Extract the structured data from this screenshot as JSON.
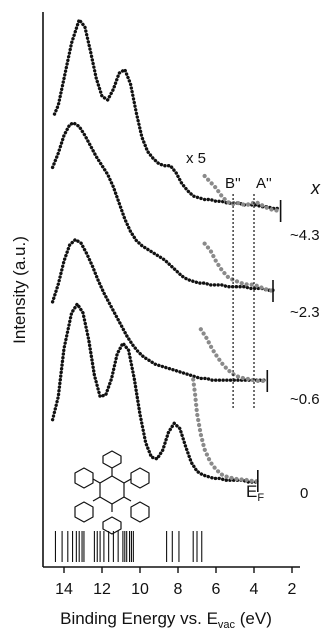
{
  "chart_data": {
    "type": "line",
    "title": "",
    "xlabel": "Binding Energy vs. E",
    "xlabel_sub": "vac",
    "xlabel_unit": " (eV)",
    "ylabel": "Intensity (a.u.)",
    "xlim": [
      15,
      2
    ],
    "x_reversed": true,
    "xticks": [
      14,
      12,
      10,
      8,
      6,
      4,
      2
    ],
    "x_header": "x",
    "magnification_label": "x 5",
    "peak_labels": [
      "B''",
      "A''"
    ],
    "peak_positions": [
      5.1,
      4.0
    ],
    "fermi_label": "E",
    "fermi_sub": "F",
    "stick_spectrum": [
      14.45,
      14.1,
      13.8,
      13.55,
      13.35,
      13.2,
      13.05,
      12.95,
      12.4,
      12.25,
      12.1,
      11.9,
      11.65,
      11.4,
      11.15,
      10.9,
      10.8,
      10.7,
      10.55,
      10.45,
      10.35,
      8.6,
      8.3,
      7.95,
      7.2,
      7.0,
      6.75
    ],
    "series": [
      {
        "name": "~4.3",
        "cutoff": 2.6,
        "x": [
          14.5,
          14.3,
          14.0,
          13.6,
          13.2,
          12.9,
          12.6,
          12.3,
          12.0,
          11.7,
          11.4,
          11.1,
          10.8,
          10.5,
          10.2,
          9.9,
          9.6,
          9.3,
          9.0,
          8.7,
          8.4,
          8.1,
          7.8,
          7.5,
          7.2,
          6.9,
          6.6,
          6.3,
          6.0,
          5.7,
          5.4,
          5.1,
          4.8,
          4.5,
          4.2,
          3.9,
          3.6,
          3.3,
          3.0,
          2.6
        ],
        "y": [
          55,
          60,
          75,
          95,
          108,
          104,
          90,
          75,
          65,
          63,
          69,
          78,
          80,
          72,
          56,
          42,
          34,
          30,
          27,
          26,
          26,
          22,
          16,
          12,
          9,
          8,
          7,
          7,
          6,
          6,
          5,
          5,
          5,
          4,
          4,
          4,
          3,
          3,
          2,
          2
        ]
      },
      {
        "name": "~2.3",
        "cutoff": 3.0,
        "x": [
          14.6,
          14.3,
          14.0,
          13.7,
          13.5,
          13.2,
          12.9,
          12.6,
          12.3,
          12.0,
          11.7,
          11.4,
          11.1,
          10.8,
          10.5,
          10.2,
          9.9,
          9.6,
          9.3,
          9.0,
          8.7,
          8.4,
          8.1,
          7.8,
          7.5,
          7.2,
          6.9,
          6.6,
          6.3,
          6.0,
          5.7,
          5.4,
          5.1,
          4.8,
          4.5,
          4.2,
          3.9,
          3.6,
          3.3,
          3.0
        ],
        "y": [
          70,
          78,
          88,
          94,
          95,
          93,
          88,
          82,
          76,
          71,
          66,
          59,
          50,
          41,
          34,
          29,
          26,
          24,
          22,
          20,
          18,
          15,
          12,
          9,
          7,
          6,
          5,
          5,
          4,
          4,
          4,
          3,
          3,
          3,
          3,
          2,
          2,
          2,
          1,
          1
        ]
      },
      {
        "name": "~0.6",
        "cutoff": 3.3,
        "x": [
          14.6,
          14.3,
          14.0,
          13.7,
          13.4,
          13.1,
          12.8,
          12.5,
          12.2,
          11.9,
          11.6,
          11.3,
          11.0,
          10.7,
          10.4,
          10.1,
          9.8,
          9.5,
          9.2,
          8.9,
          8.6,
          8.3,
          8.0,
          7.7,
          7.4,
          7.1,
          6.8,
          6.5,
          6.2,
          5.9,
          5.6,
          5.3,
          5.0,
          4.7,
          4.4,
          4.1,
          3.8,
          3.5,
          3.3
        ],
        "y": [
          45,
          55,
          68,
          77,
          80,
          78,
          72,
          65,
          57,
          50,
          44,
          38,
          32,
          26,
          21,
          17,
          14,
          12,
          10,
          9,
          8,
          7,
          6,
          5,
          4,
          3,
          2,
          2,
          1,
          1,
          1,
          1,
          1,
          1,
          1,
          1,
          1,
          1,
          1
        ]
      },
      {
        "name": "0",
        "cutoff": 3.8,
        "x": [
          14.6,
          14.3,
          14.0,
          13.6,
          13.3,
          13.0,
          12.7,
          12.4,
          12.1,
          11.8,
          11.5,
          11.2,
          10.9,
          10.6,
          10.3,
          10.0,
          9.7,
          9.4,
          9.1,
          8.8,
          8.5,
          8.2,
          7.9,
          7.6,
          7.3,
          7.0,
          6.7,
          6.4,
          6.1,
          5.8,
          5.5,
          5.2,
          4.9,
          4.6,
          4.3,
          4.0,
          3.8
        ],
        "y": [
          35,
          48,
          75,
          95,
          100,
          95,
          80,
          60,
          48,
          49,
          58,
          72,
          78,
          74,
          58,
          38,
          22,
          14,
          13,
          18,
          28,
          33,
          30,
          20,
          11,
          6,
          4,
          3,
          2,
          2,
          1,
          1,
          1,
          1,
          0,
          0,
          0
        ]
      }
    ],
    "magnified_x5": [
      {
        "name": "~4.3",
        "x": [
          6.6,
          6.3,
          6.0,
          5.7,
          5.4,
          5.1,
          4.8,
          4.5,
          4.2,
          3.9,
          3.6,
          3.3,
          3.0,
          2.6
        ],
        "y": [
          36,
          30,
          24,
          16,
          10,
          8,
          9,
          7,
          8,
          10,
          7,
          4,
          2,
          1
        ]
      },
      {
        "name": "~2.3",
        "x": [
          6.6,
          6.3,
          6.0,
          5.7,
          5.4,
          5.1,
          4.8,
          4.5,
          4.2,
          3.9,
          3.6,
          3.3,
          3.0
        ],
        "y": [
          44,
          38,
          28,
          20,
          14,
          11,
          9,
          7,
          7,
          6,
          4,
          2,
          1
        ]
      },
      {
        "name": "~0.6",
        "x": [
          6.8,
          6.5,
          6.2,
          5.9,
          5.6,
          5.3,
          5.0,
          4.7,
          4.4,
          4.1,
          3.8,
          3.5,
          3.3
        ],
        "y": [
          48,
          40,
          30,
          22,
          15,
          10,
          6,
          4,
          3,
          2,
          1,
          1,
          0
        ]
      },
      {
        "name": "0",
        "x": [
          7.2,
          7.1,
          7.0,
          6.8,
          6.6,
          6.3,
          6.0,
          5.7,
          5.4,
          5.1,
          4.8,
          4.5,
          4.2,
          3.9,
          3.8
        ],
        "y": [
          82,
          70,
          55,
          38,
          26,
          16,
          10,
          6,
          4,
          3,
          2,
          2,
          1,
          1,
          0
        ]
      }
    ],
    "grid": false,
    "legend": "none"
  }
}
